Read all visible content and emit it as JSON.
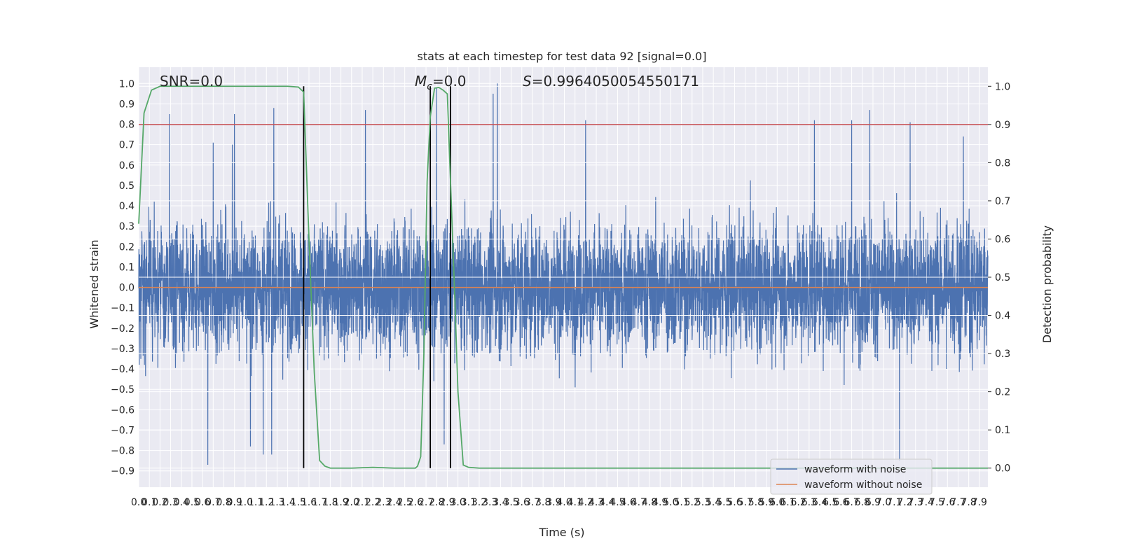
{
  "chart_data": {
    "type": "line",
    "title": "stats at each timestep for test data 92 [signal=0.0]",
    "xlabel": "Time (s)",
    "ylabel": "Whitened strain",
    "y2label": "Detection probability",
    "xlim": [
      0.0,
      7.98
    ],
    "ylim": [
      -0.98,
      1.08
    ],
    "y2lim": [
      -0.05,
      1.05
    ],
    "x_ticks": [
      0.0,
      0.1,
      0.2,
      0.3,
      0.4,
      0.5,
      0.6,
      0.7,
      0.8,
      0.9,
      1.0,
      1.1,
      1.2,
      1.3,
      1.4,
      1.5,
      1.6,
      1.7,
      1.8,
      1.9,
      2.0,
      2.1,
      2.2,
      2.3,
      2.4,
      2.5,
      2.6,
      2.7,
      2.8,
      2.9,
      3.0,
      3.1,
      3.2,
      3.3,
      3.4,
      3.5,
      3.6,
      3.7,
      3.8,
      3.9,
      4.0,
      4.1,
      4.2,
      4.3,
      4.4,
      4.5,
      4.6,
      4.7,
      4.8,
      4.9,
      5.0,
      5.1,
      5.2,
      5.3,
      5.4,
      5.5,
      5.6,
      5.7,
      5.8,
      5.9,
      6.0,
      6.1,
      6.2,
      6.3,
      6.4,
      6.5,
      6.6,
      6.7,
      6.8,
      6.9,
      7.0,
      7.1,
      7.2,
      7.3,
      7.4,
      7.5,
      7.6,
      7.7,
      7.8,
      7.9
    ],
    "y_ticks": [
      -0.9,
      -0.8,
      -0.7,
      -0.6,
      -0.5,
      -0.4,
      -0.3,
      -0.2,
      -0.1,
      0.0,
      0.1,
      0.2,
      0.3,
      0.4,
      0.5,
      0.6,
      0.7,
      0.8,
      0.9,
      1.0
    ],
    "y2_ticks": [
      0.0,
      0.1,
      0.2,
      0.3,
      0.4,
      0.5,
      0.6,
      0.7,
      0.8,
      0.9,
      1.0
    ],
    "grid": true,
    "legend_position": "lower-right",
    "annotations": [
      {
        "text": "SNR=0.0",
        "x": 0.2,
        "y": 1.02
      },
      {
        "text": "M_c=0.0",
        "x": 2.6,
        "y": 1.02
      },
      {
        "text": "S=0.9964050054550171",
        "x": 3.6,
        "y": 1.02
      }
    ],
    "threshold_line": {
      "axis": "y2",
      "value": 0.9,
      "color": "#c44e52"
    },
    "vertical_lines": [
      {
        "x": 1.55,
        "y2_from": 0.0,
        "y2_to": 1.0
      },
      {
        "x": 2.74,
        "y2_from": 0.0,
        "y2_to": 1.0
      },
      {
        "x": 2.93,
        "y2_from": 0.0,
        "y2_to": 1.0
      }
    ],
    "series": [
      {
        "name": "waveform with noise",
        "color": "#4c72b0",
        "axis": "y",
        "noise_envelope": {
          "typical_amplitude": 0.35,
          "max": 1.0,
          "min": -0.87
        },
        "peaks": [
          {
            "x": 0.29,
            "y": 0.85
          },
          {
            "x": 0.7,
            "y": 0.71
          },
          {
            "x": 0.88,
            "y": 0.7
          },
          {
            "x": 0.9,
            "y": 0.85
          },
          {
            "x": 1.27,
            "y": 0.88
          },
          {
            "x": 2.13,
            "y": 0.87
          },
          {
            "x": 2.8,
            "y": 0.98
          },
          {
            "x": 3.33,
            "y": 0.95
          },
          {
            "x": 3.37,
            "y": 1.0
          },
          {
            "x": 4.2,
            "y": 0.82
          },
          {
            "x": 6.35,
            "y": 0.82
          },
          {
            "x": 6.7,
            "y": 0.82
          },
          {
            "x": 6.87,
            "y": 0.87
          },
          {
            "x": 7.25,
            "y": 0.81
          },
          {
            "x": 7.75,
            "y": 0.74
          }
        ],
        "troughs": [
          {
            "x": 0.65,
            "y": -0.87
          },
          {
            "x": 1.05,
            "y": -0.78
          },
          {
            "x": 1.17,
            "y": -0.82
          },
          {
            "x": 1.25,
            "y": -0.82
          },
          {
            "x": 2.87,
            "y": -0.77
          },
          {
            "x": 7.15,
            "y": -0.85
          }
        ]
      },
      {
        "name": "waveform without noise",
        "color": "#dd8452",
        "axis": "y",
        "x": [
          0.0,
          7.98
        ],
        "y": [
          0.0,
          0.0
        ]
      },
      {
        "color": "#55a868",
        "axis": "y2",
        "x": [
          0.0,
          0.05,
          0.12,
          0.2,
          0.3,
          0.5,
          1.0,
          1.4,
          1.5,
          1.55,
          1.6,
          1.65,
          1.7,
          1.75,
          1.8,
          1.9,
          2.0,
          2.2,
          2.4,
          2.6,
          2.62,
          2.65,
          2.68,
          2.71,
          2.74,
          2.78,
          2.82,
          2.86,
          2.9,
          2.93,
          2.97,
          3.0,
          3.05,
          3.1,
          3.2,
          3.5,
          4.0,
          5.0,
          6.0,
          7.0,
          7.98
        ],
        "y": [
          0.64,
          0.93,
          0.99,
          1.0,
          1.0,
          1.0,
          1.0,
          1.0,
          0.998,
          0.985,
          0.6,
          0.25,
          0.02,
          0.005,
          0.0,
          0.0,
          0.0,
          0.002,
          0.0,
          0.0,
          0.005,
          0.03,
          0.3,
          0.75,
          0.92,
          0.995,
          0.997,
          0.99,
          0.98,
          0.75,
          0.45,
          0.2,
          0.008,
          0.002,
          0.0,
          0.0,
          0.0,
          0.0,
          0.0,
          0.0,
          0.0
        ]
      }
    ]
  }
}
